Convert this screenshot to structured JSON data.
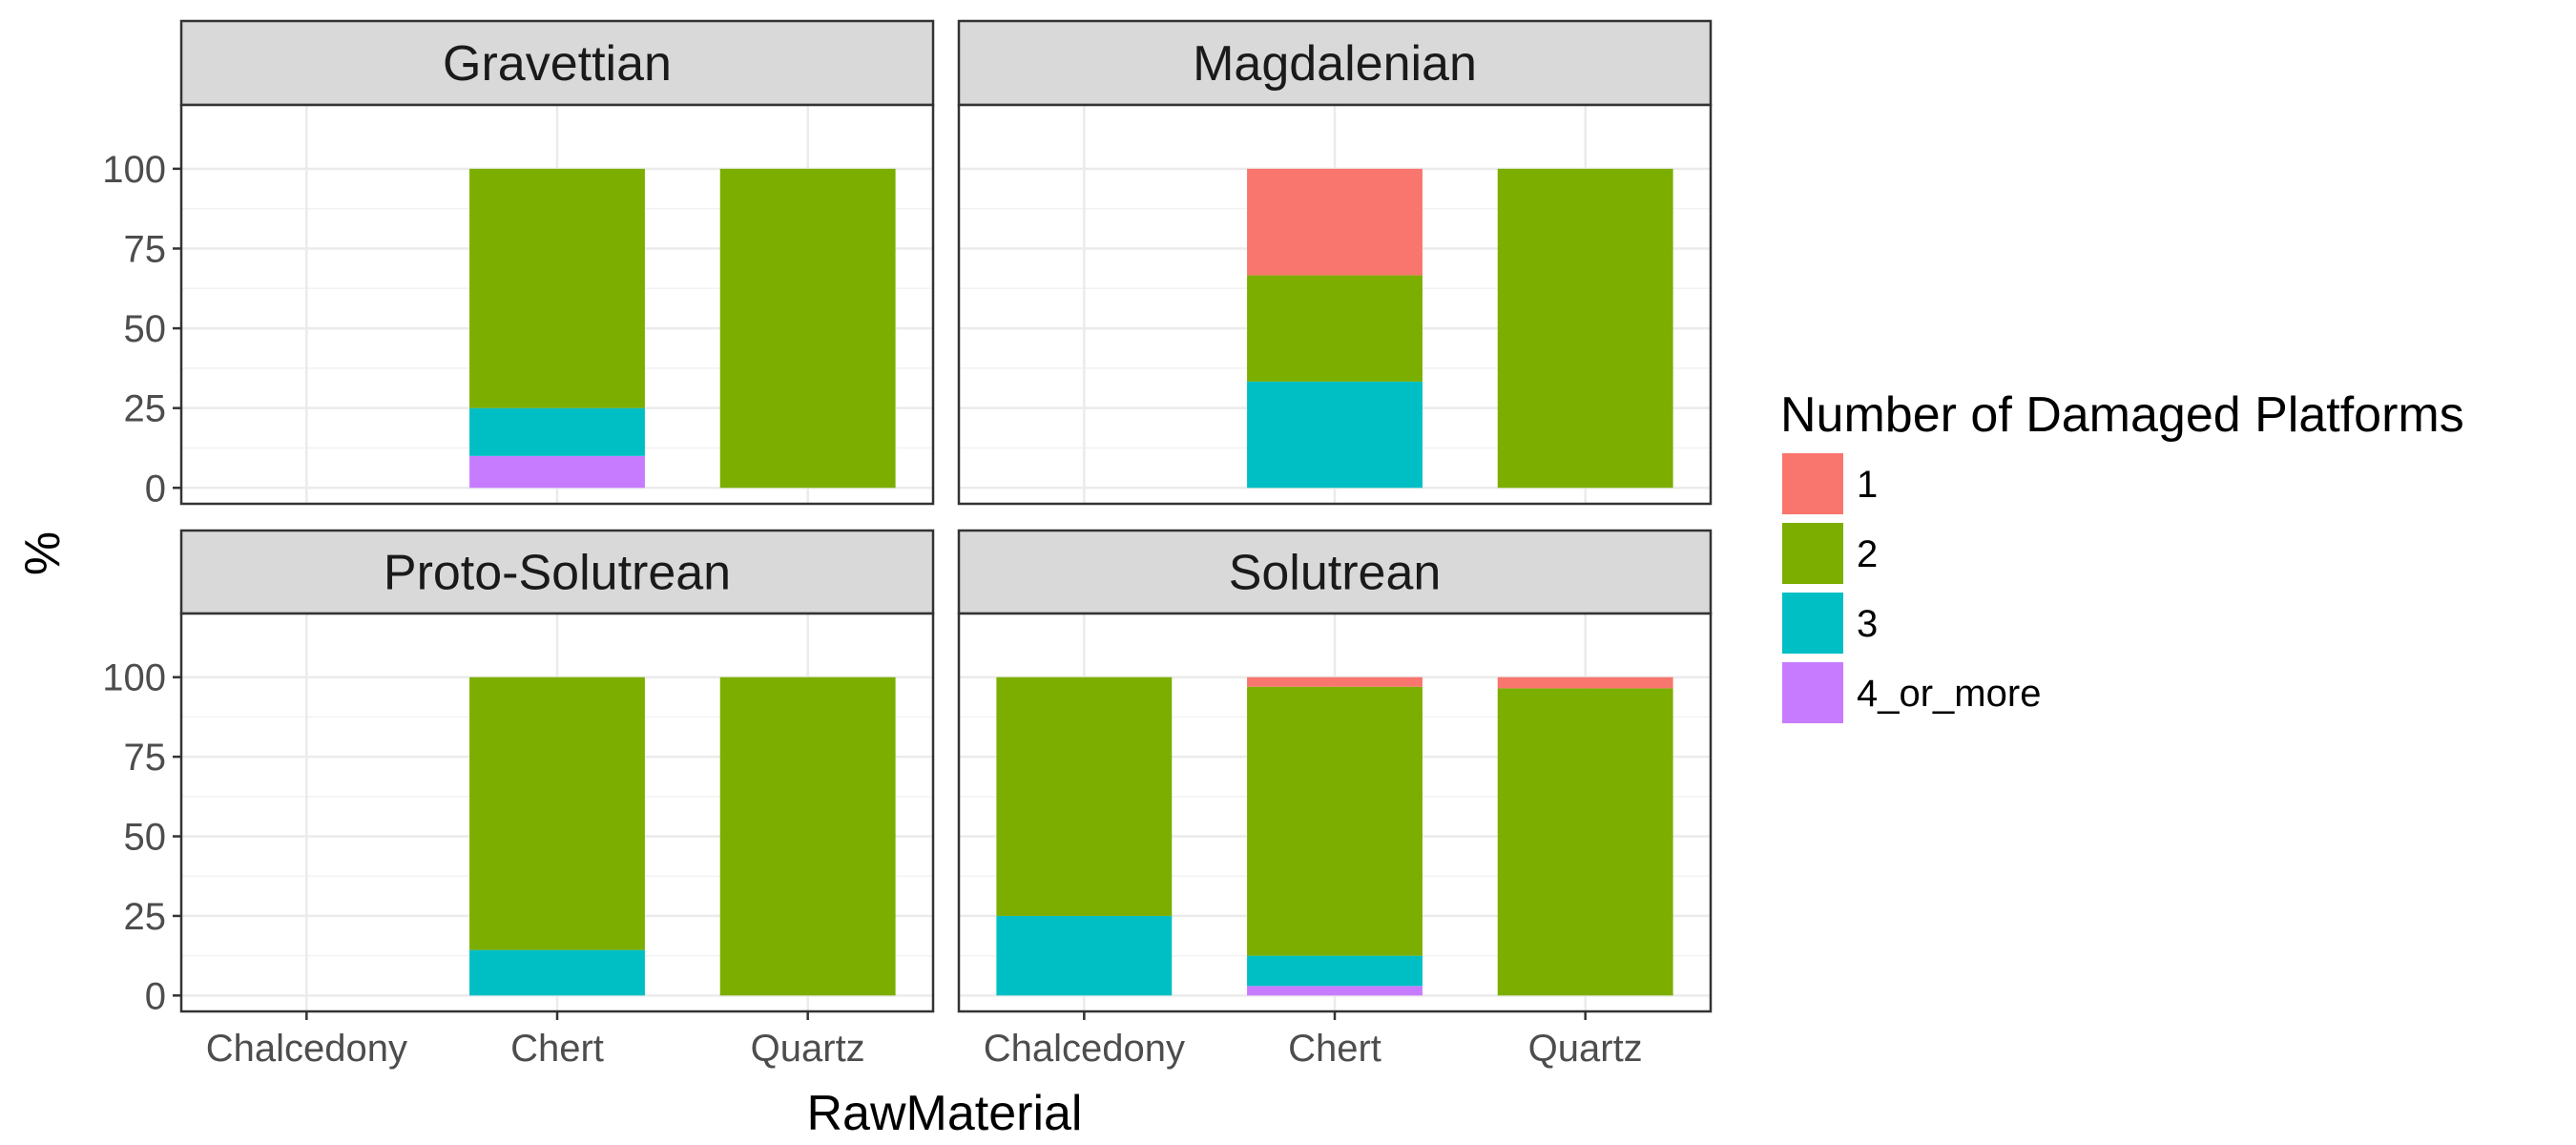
{
  "chart_data": {
    "type": "bar",
    "stacked": true,
    "xlabel": "RawMaterial",
    "ylabel": "%",
    "ylim": [
      0,
      100
    ],
    "yticks": [
      0,
      25,
      50,
      75,
      100
    ],
    "grid": true,
    "categories": [
      "Chalcedony",
      "Chert",
      "Quartz"
    ],
    "stack_order": [
      "4_or_more",
      "3",
      "2",
      "1"
    ],
    "legend": {
      "title": "Number of Damaged Platforms",
      "position": "right",
      "entries": [
        {
          "label": "1",
          "color": "#F8766D"
        },
        {
          "label": "2",
          "color": "#7CAE00"
        },
        {
          "label": "3",
          "color": "#00BFC4"
        },
        {
          "label": "4_or_more",
          "color": "#C77CFF"
        }
      ]
    },
    "panels": [
      {
        "title": "Gravettian",
        "bars": [
          {
            "category": "Chert",
            "segments": {
              "4_or_more": 10,
              "3": 15,
              "2": 75,
              "1": 0
            }
          },
          {
            "category": "Quartz",
            "segments": {
              "4_or_more": 0,
              "3": 0,
              "2": 100,
              "1": 0
            }
          }
        ]
      },
      {
        "title": "Magdalenian",
        "bars": [
          {
            "category": "Chert",
            "segments": {
              "4_or_more": 0,
              "3": 33.3,
              "2": 33.3,
              "1": 33.4
            }
          },
          {
            "category": "Quartz",
            "segments": {
              "4_or_more": 0,
              "3": 0,
              "2": 100,
              "1": 0
            }
          }
        ]
      },
      {
        "title": "Proto-Solutrean",
        "bars": [
          {
            "category": "Chert",
            "segments": {
              "4_or_more": 0,
              "3": 14.3,
              "2": 85.7,
              "1": 0
            }
          },
          {
            "category": "Quartz",
            "segments": {
              "4_or_more": 0,
              "3": 0,
              "2": 100,
              "1": 0
            }
          }
        ]
      },
      {
        "title": "Solutrean",
        "bars": [
          {
            "category": "Chalcedony",
            "segments": {
              "4_or_more": 0,
              "3": 25,
              "2": 75,
              "1": 0
            }
          },
          {
            "category": "Chert",
            "segments": {
              "4_or_more": 3,
              "3": 9.5,
              "2": 84.5,
              "1": 3
            }
          },
          {
            "category": "Quartz",
            "segments": {
              "4_or_more": 0,
              "3": 0,
              "2": 96.5,
              "1": 3.5
            }
          }
        ]
      }
    ]
  }
}
